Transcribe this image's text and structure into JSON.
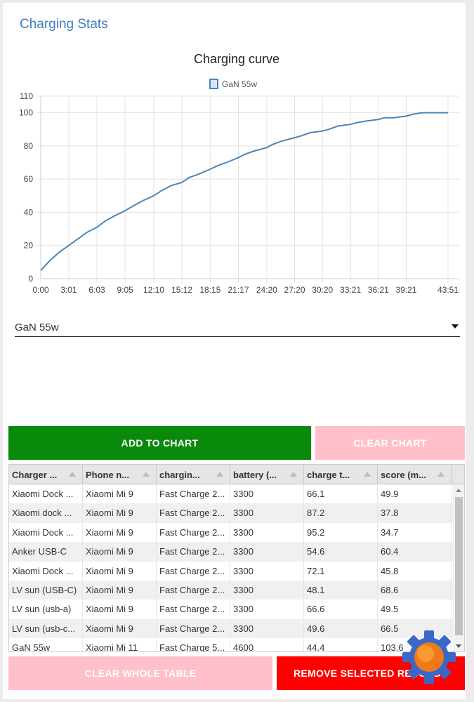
{
  "card": {
    "title": "Charging Stats"
  },
  "chart_data": {
    "type": "line",
    "title": "Charging curve",
    "series": [
      {
        "name": "GaN 55w",
        "x": [
          "0:00",
          "1:00",
          "2:00",
          "3:01",
          "4:00",
          "5:00",
          "6:03",
          "7:00",
          "8:00",
          "9:05",
          "10:00",
          "11:00",
          "12:10",
          "13:00",
          "14:00",
          "15:12",
          "16:00",
          "17:00",
          "18:15",
          "19:00",
          "20:00",
          "21:17",
          "22:00",
          "23:00",
          "24:20",
          "25:00",
          "26:00",
          "27:20",
          "28:00",
          "29:00",
          "30:20",
          "31:00",
          "32:00",
          "33:21",
          "34:00",
          "35:00",
          "36:21",
          "37:00",
          "38:00",
          "39:21",
          "40:00",
          "41:00",
          "42:00",
          "43:51"
        ],
        "values": [
          5,
          11,
          16,
          20,
          24,
          28,
          31,
          35,
          38,
          41,
          44,
          47,
          50,
          53,
          56,
          58,
          61,
          63,
          66,
          68,
          70,
          73,
          75,
          77,
          79,
          81,
          83,
          85,
          86,
          88,
          89,
          90,
          92,
          93,
          94,
          95,
          96,
          97,
          97,
          98,
          99,
          100,
          100,
          100
        ]
      }
    ],
    "x_ticks": [
      "0:00",
      "3:01",
      "6:03",
      "9:05",
      "12:10",
      "15:12",
      "18:15",
      "21:17",
      "24:20",
      "27:20",
      "30:20",
      "33:21",
      "36:21",
      "39:21",
      "43:51"
    ],
    "y_ticks": [
      0,
      20,
      40,
      60,
      80,
      100,
      110
    ],
    "ylim": [
      0,
      110
    ],
    "legend_position": "top-center",
    "grid": true,
    "line_color": "#4a86b8"
  },
  "selector": {
    "value": "GaN 55w"
  },
  "buttons": {
    "add_to_chart": "ADD TO CHART",
    "clear_chart": "CLEAR CHART",
    "clear_whole_table": "CLEAR WHOLE TABLE",
    "remove_selected": "REMOVE SELECTED RECORDS"
  },
  "table": {
    "columns": [
      "Charger ...",
      "Phone n...",
      "chargin...",
      "battery (...",
      "charge t...",
      "score (m..."
    ],
    "rows": [
      [
        "Xiaomi Dock ...",
        "Xiaomi Mi 9",
        "Fast Charge 2...",
        "3300",
        "66.1",
        "49.9"
      ],
      [
        "Xiaomi dock ...",
        "Xiaomi Mi 9",
        "Fast Charge 2...",
        "3300",
        "87.2",
        "37.8"
      ],
      [
        "Xiaomi Dock ...",
        "Xiaomi Mi 9",
        "Fast Charge 2...",
        "3300",
        "95.2",
        "34.7"
      ],
      [
        "Anker USB-C",
        "Xiaomi Mi 9",
        "Fast Charge 2...",
        "3300",
        "54.6",
        "60.4"
      ],
      [
        "Xiaomi Dock ...",
        "Xiaomi Mi 9",
        "Fast Charge 2...",
        "3300",
        "72.1",
        "45.8"
      ],
      [
        "LV sun (USB-C)",
        "Xiaomi Mi 9",
        "Fast Charge 2...",
        "3300",
        "48.1",
        "68.6"
      ],
      [
        "LV sun (usb-a)",
        "Xiaomi Mi 9",
        "Fast Charge 2...",
        "3300",
        "66.6",
        "49.5"
      ],
      [
        "LV sun (usb-c...",
        "Xiaomi Mi 9",
        "Fast Charge 2...",
        "3300",
        "49.6",
        "66.5"
      ],
      [
        "GaN 55w",
        "Xiaomi Mi 11",
        "Fast Charge 5...",
        "4600",
        "44.4",
        "103.6"
      ]
    ]
  },
  "icons": {
    "scroll_up": "triangle-up-icon",
    "scroll_down": "triangle-down-icon",
    "dropdown": "caret-down-icon",
    "sort": "sort-arrow-icon",
    "watermark": "gear-icon"
  }
}
